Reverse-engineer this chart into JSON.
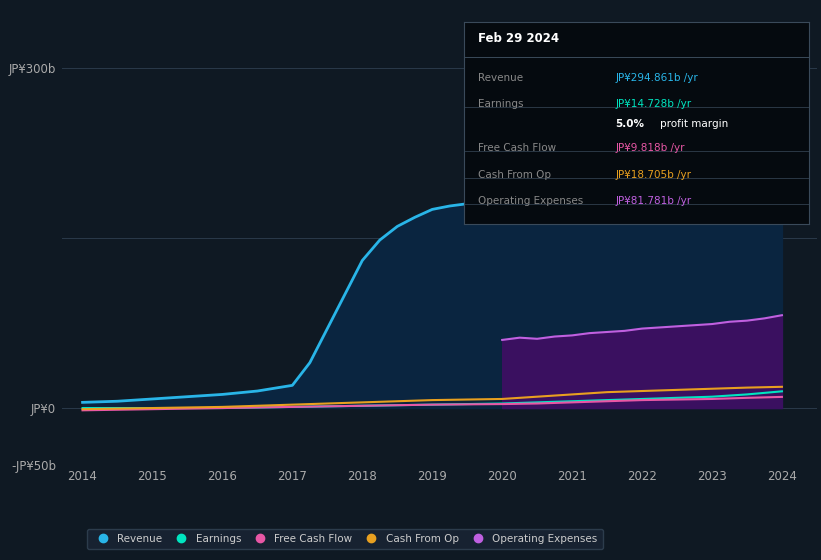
{
  "bg_color": "#0f1923",
  "plot_bg_color": "#0f1923",
  "ylim": [
    -50,
    320
  ],
  "xlim": [
    2013.7,
    2024.5
  ],
  "xticks": [
    2014,
    2015,
    2016,
    2017,
    2018,
    2019,
    2020,
    2021,
    2022,
    2023,
    2024
  ],
  "ytick_labels": [
    "-JP¥50b",
    "JP¥0",
    "JP¥300b"
  ],
  "ytick_vals": [
    -50,
    0,
    300
  ],
  "grid_vals": [
    -50,
    0,
    150,
    300
  ],
  "revenue_color": "#29b5e8",
  "earnings_color": "#00e5c0",
  "fcf_color": "#e857a5",
  "cashfromop_color": "#e8a020",
  "opex_color": "#c060e0",
  "opex_fill_color": "#3a1060",
  "revenue_fill_color": "#0a2540",
  "revenue_years": [
    2014,
    2014.5,
    2015,
    2015.5,
    2016,
    2016.5,
    2017,
    2017.25,
    2017.5,
    2017.75,
    2018,
    2018.25,
    2018.5,
    2018.75,
    2019,
    2019.25,
    2019.5,
    2019.75,
    2020,
    2020.5,
    2021,
    2021.5,
    2022,
    2022.5,
    2023,
    2023.5,
    2024
  ],
  "revenue_vals": [
    5,
    6,
    8,
    10,
    12,
    15,
    20,
    40,
    70,
    100,
    130,
    148,
    160,
    168,
    175,
    178,
    180,
    182,
    185,
    190,
    200,
    215,
    228,
    242,
    255,
    270,
    295
  ],
  "earnings_years": [
    2014,
    2015,
    2016,
    2017,
    2018,
    2019,
    2020,
    2020.5,
    2021,
    2021.5,
    2022,
    2022.5,
    2023,
    2023.5,
    2024
  ],
  "earnings_vals": [
    0,
    0,
    0,
    1,
    2,
    3,
    4,
    5,
    6,
    7,
    8,
    9,
    10,
    12,
    14.728
  ],
  "fcf_years": [
    2014,
    2015,
    2016,
    2017,
    2018,
    2019,
    2020,
    2020.5,
    2021,
    2021.5,
    2022,
    2022.5,
    2023,
    2023.5,
    2024
  ],
  "fcf_vals": [
    -2,
    -1,
    0,
    1,
    2,
    3,
    3.5,
    4,
    5,
    6,
    7,
    7.5,
    8,
    9,
    9.818
  ],
  "cashfromop_years": [
    2014,
    2015,
    2016,
    2017,
    2018,
    2019,
    2020,
    2020.5,
    2021,
    2021.5,
    2022,
    2022.5,
    2023,
    2023.5,
    2024
  ],
  "cashfromop_vals": [
    -1,
    0,
    1,
    3,
    5,
    7,
    8,
    10,
    12,
    14,
    15,
    16,
    17,
    18,
    18.705
  ],
  "opex_years": [
    2020,
    2020.25,
    2020.5,
    2020.75,
    2021,
    2021.25,
    2021.5,
    2021.75,
    2022,
    2022.25,
    2022.5,
    2022.75,
    2023,
    2023.25,
    2023.5,
    2023.75,
    2024
  ],
  "opex_vals": [
    60,
    62,
    61,
    63,
    64,
    66,
    67,
    68,
    70,
    71,
    72,
    73,
    74,
    76,
    77,
    79,
    81.781
  ],
  "legend": [
    {
      "label": "Revenue",
      "color": "#29b5e8"
    },
    {
      "label": "Earnings",
      "color": "#00e5c0"
    },
    {
      "label": "Free Cash Flow",
      "color": "#e857a5"
    },
    {
      "label": "Cash From Op",
      "color": "#e8a020"
    },
    {
      "label": "Operating Expenses",
      "color": "#c060e0"
    }
  ],
  "infobox": {
    "title": "Feb 29 2024",
    "rows": [
      {
        "label": "Revenue",
        "value": "JP¥294.861b /yr",
        "color": "#29b5e8"
      },
      {
        "label": "Earnings",
        "value": "JP¥14.728b /yr",
        "color": "#00e5c0"
      },
      {
        "label": "",
        "value": "5.0% profit margin",
        "color": "#ffffff"
      },
      {
        "label": "Free Cash Flow",
        "value": "JP¥9.818b /yr",
        "color": "#e857a5"
      },
      {
        "label": "Cash From Op",
        "value": "JP¥18.705b /yr",
        "color": "#e8a020"
      },
      {
        "label": "Operating Expenses",
        "value": "JP¥81.781b /yr",
        "color": "#c060e0"
      }
    ],
    "bold_pct": "5.0%"
  }
}
